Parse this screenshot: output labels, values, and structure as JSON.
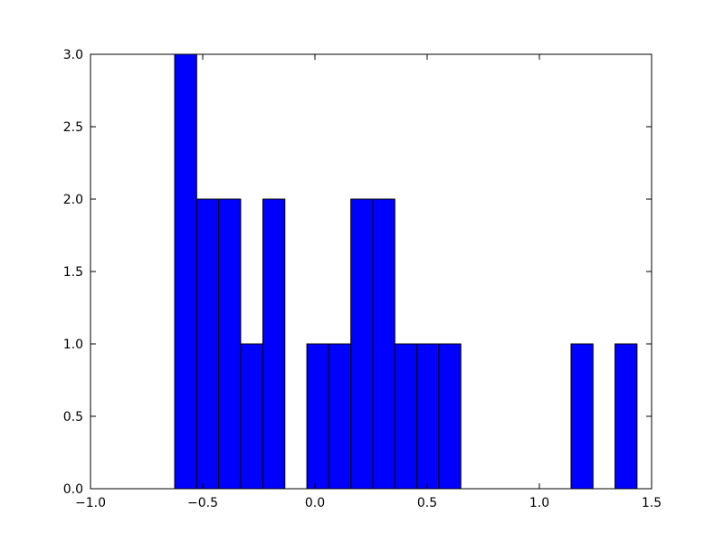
{
  "chart_data": {
    "type": "histogram",
    "color": "#0000ff",
    "bins": [
      -0.625,
      -0.527,
      -0.429,
      -0.331,
      -0.232,
      -0.134,
      -0.036,
      0.062,
      0.16,
      0.258,
      0.356,
      0.454,
      0.552,
      0.65,
      0.748,
      0.847,
      0.945,
      1.043,
      1.141,
      1.239,
      1.337,
      1.435
    ],
    "counts": [
      3,
      2,
      2,
      1,
      2,
      0,
      1,
      1,
      2,
      2,
      1,
      1,
      1,
      0,
      0,
      0,
      0,
      0,
      1,
      0,
      1
    ],
    "xlim": [
      -1.0,
      1.5
    ],
    "xticks": [
      {
        "value": -1.0,
        "label": "−1.0"
      },
      {
        "value": -0.5,
        "label": "−0.5"
      },
      {
        "value": 0.0,
        "label": "0.0"
      },
      {
        "value": 0.5,
        "label": "0.5"
      },
      {
        "value": 1.0,
        "label": "1.0"
      },
      {
        "value": 1.5,
        "label": "1.5"
      }
    ],
    "ylim": [
      0,
      3.0
    ],
    "yticks": [
      {
        "value": 0,
        "label": "0.0"
      },
      {
        "value": 0.5,
        "label": "0.5"
      },
      {
        "value": 1.0,
        "label": "1.0"
      },
      {
        "value": 1.5,
        "label": "1.5"
      },
      {
        "value": 2.0,
        "label": "2.0"
      },
      {
        "value": 2.5,
        "label": "2.5"
      },
      {
        "value": 3.0,
        "label": "3.0"
      }
    ]
  }
}
